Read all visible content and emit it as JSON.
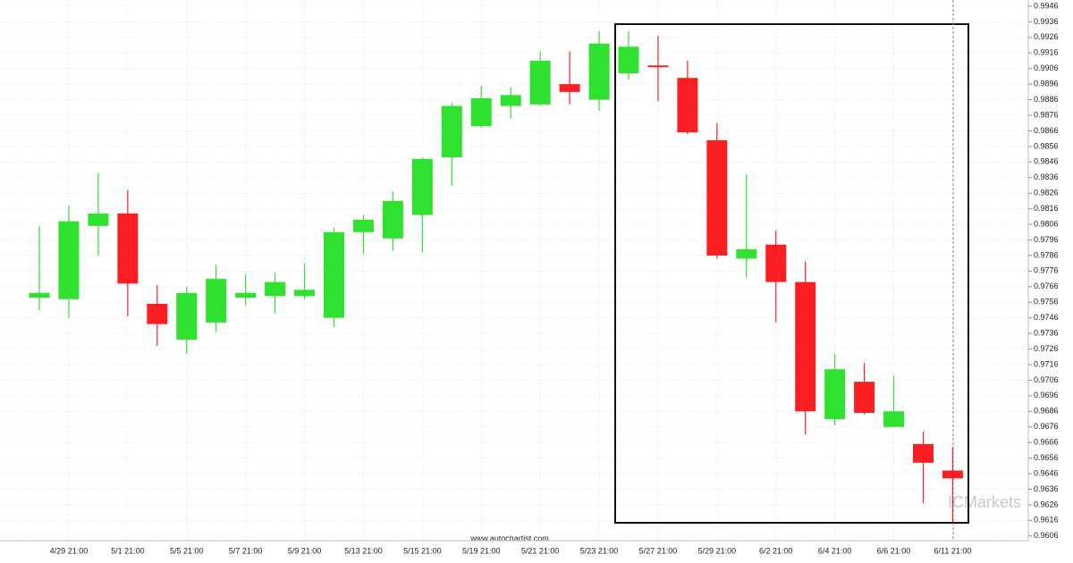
{
  "chart_data": {
    "type": "candlestick",
    "categories": [
      null,
      "4/29 21:00",
      null,
      "5/1 21:00",
      null,
      "5/5 21:00",
      null,
      "5/7 21:00",
      null,
      "5/9 21:00",
      null,
      "5/13 21:00",
      null,
      "5/15 21:00",
      null,
      "5/19 21:00",
      null,
      "5/21 21:00",
      null,
      "5/23 21:00",
      null,
      "5/27 21:00",
      null,
      "5/29 21:00",
      null,
      "6/2 21:00",
      null,
      "6/4 21:00",
      null,
      "6/6 21:00",
      null,
      "6/11 21:00"
    ],
    "open": [
      0.9759,
      0.9758,
      0.9805,
      0.9813,
      0.9755,
      0.9732,
      0.9743,
      0.9759,
      0.976,
      0.976,
      0.9746,
      0.9801,
      0.9797,
      0.9812,
      0.9849,
      0.9869,
      0.9882,
      0.9883,
      0.9896,
      0.9886,
      0.9903,
      0.9908,
      0.99,
      0.986,
      0.9784,
      0.9793,
      0.9769,
      0.9681,
      0.9705,
      0.9676,
      0.9665,
      0.9648
    ],
    "high": [
      0.9805,
      0.9818,
      0.9839,
      0.9828,
      0.9767,
      0.9766,
      0.978,
      0.9774,
      0.9775,
      0.9781,
      0.9804,
      0.9812,
      0.9827,
      0.9849,
      0.9884,
      0.9895,
      0.9894,
      0.9917,
      0.9917,
      0.993,
      0.993,
      0.9927,
      0.9911,
      0.9871,
      0.9838,
      0.9802,
      0.9782,
      0.9723,
      0.9717,
      0.9709,
      0.9673,
      0.9663
    ],
    "low": [
      0.9751,
      0.9746,
      0.9786,
      0.9747,
      0.9728,
      0.9723,
      0.9737,
      0.9754,
      0.9749,
      0.9758,
      0.974,
      0.9787,
      0.9789,
      0.9788,
      0.9831,
      0.9868,
      0.9874,
      0.9882,
      0.9883,
      0.9879,
      0.9899,
      0.9885,
      0.9864,
      0.9784,
      0.9772,
      0.9743,
      0.9671,
      0.9677,
      0.9684,
      0.9676,
      0.9627,
      0.9615
    ],
    "close": [
      0.9762,
      0.9808,
      0.9813,
      0.9768,
      0.9742,
      0.9762,
      0.9771,
      0.9762,
      0.9769,
      0.9764,
      0.9801,
      0.9809,
      0.9821,
      0.9848,
      0.9882,
      0.9887,
      0.9889,
      0.9911,
      0.9891,
      0.9922,
      0.992,
      0.9907,
      0.9865,
      0.9786,
      0.979,
      0.9769,
      0.9686,
      0.9713,
      0.9685,
      0.9686,
      0.9653,
      0.9643
    ],
    "up_color": "#2fe22f",
    "down_color": "#fb1f24",
    "ylim": [
      0.9603,
      0.995
    ],
    "yticks": [
      0.9606,
      0.9616,
      0.9626,
      0.9636,
      0.9646,
      0.9656,
      0.9666,
      0.9676,
      0.9686,
      0.9696,
      0.9706,
      0.9716,
      0.9726,
      0.9736,
      0.9746,
      0.9756,
      0.9766,
      0.9776,
      0.9786,
      0.9796,
      0.9806,
      0.9816,
      0.9826,
      0.9836,
      0.9846,
      0.9856,
      0.9866,
      0.9876,
      0.9886,
      0.9896,
      0.9906,
      0.9916,
      0.9926,
      0.9936,
      0.9946
    ],
    "grid": true,
    "watermark": "www.autochartist.com",
    "logo": "ICMarkets"
  }
}
